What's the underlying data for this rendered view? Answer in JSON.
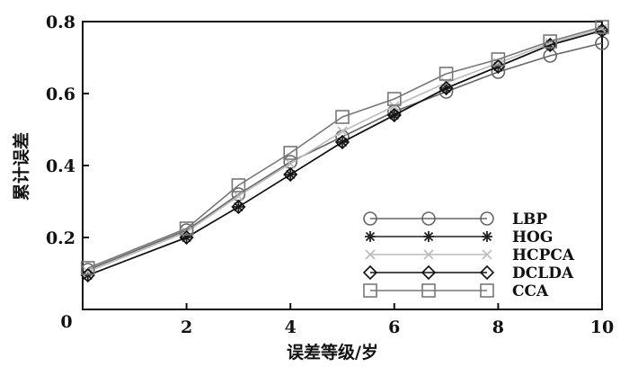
{
  "chart_data": {
    "type": "line",
    "title": "",
    "xlabel": "误差等级/岁",
    "ylabel": "累计误差",
    "xlim": [
      0,
      10
    ],
    "ylim": [
      0,
      0.8
    ],
    "xticks": [
      0,
      2,
      4,
      6,
      8,
      10
    ],
    "yticks": [
      0.2,
      0.4,
      0.6,
      0.8
    ],
    "x_tick_labels": [
      "0",
      "2",
      "4",
      "6",
      "8",
      "10"
    ],
    "y_tick_labels": [
      "0.2",
      "0.4",
      "0.6",
      "0.8"
    ],
    "grid": false,
    "legend_position": "bottom-right",
    "x": [
      0.1,
      2,
      3,
      4,
      5,
      6,
      7,
      8,
      9,
      10
    ],
    "series": [
      {
        "name": "LBP",
        "marker": "circle",
        "color": "#666666",
        "values": [
          0.11,
          0.22,
          0.32,
          0.41,
          0.48,
          0.55,
          0.605,
          0.66,
          0.705,
          0.74
        ]
      },
      {
        "name": "HOG",
        "marker": "star",
        "color": "#222222",
        "values": [
          0.095,
          0.2,
          0.285,
          0.375,
          0.465,
          0.54,
          0.615,
          0.675,
          0.735,
          0.775
        ]
      },
      {
        "name": "HCPCA",
        "marker": "x",
        "color": "#bbbbbb",
        "values": [
          0.105,
          0.215,
          0.315,
          0.405,
          0.495,
          0.565,
          0.63,
          0.685,
          0.74,
          0.78
        ]
      },
      {
        "name": "DCLDA",
        "marker": "diamond",
        "color": "#111111",
        "values": [
          0.095,
          0.2,
          0.285,
          0.375,
          0.465,
          0.54,
          0.615,
          0.675,
          0.735,
          0.775
        ]
      },
      {
        "name": "CCA",
        "marker": "square",
        "color": "#777777",
        "values": [
          0.115,
          0.225,
          0.345,
          0.435,
          0.535,
          0.585,
          0.655,
          0.695,
          0.745,
          0.785
        ]
      }
    ]
  }
}
